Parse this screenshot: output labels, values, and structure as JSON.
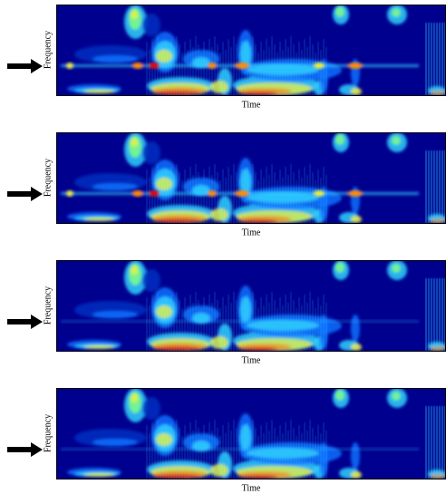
{
  "panels": [
    {
      "x_label": "Time",
      "y_label": "Frequency"
    },
    {
      "x_label": "Time",
      "y_label": "Frequency"
    },
    {
      "x_label": "Time",
      "y_label": "Frequency"
    },
    {
      "x_label": "Time",
      "y_label": "Frequency"
    }
  ]
}
